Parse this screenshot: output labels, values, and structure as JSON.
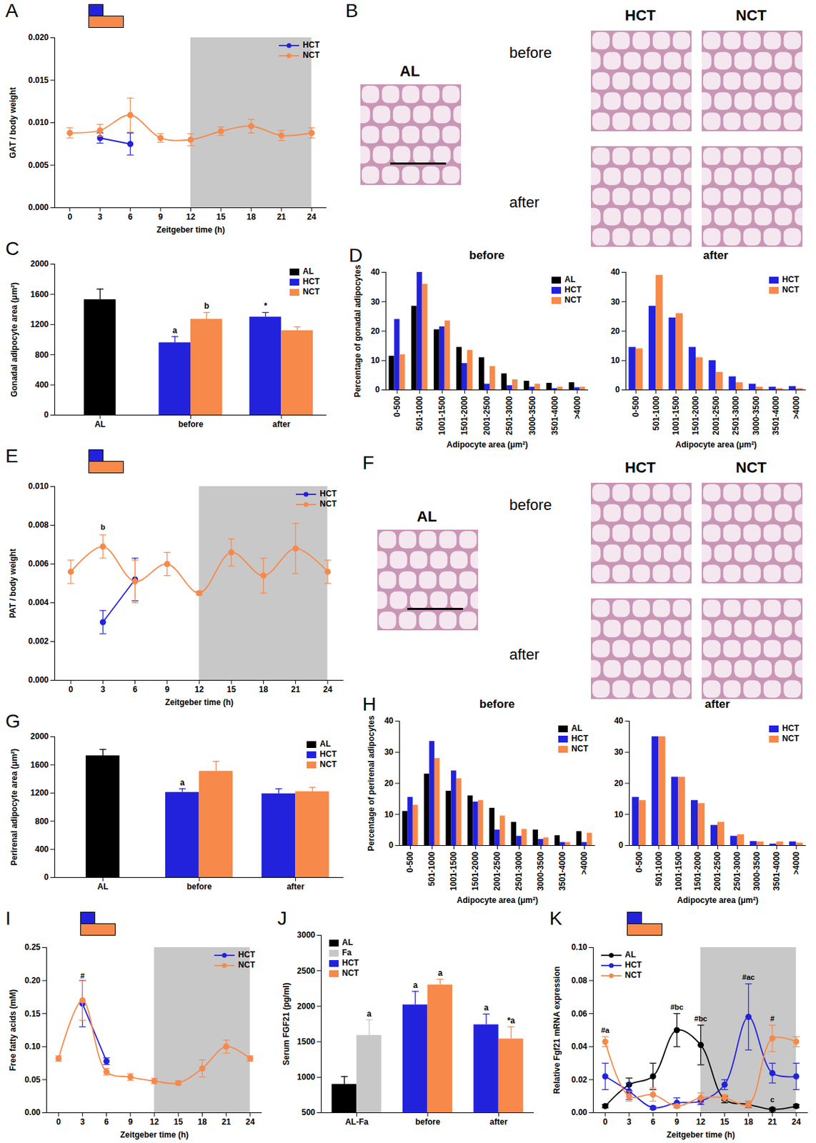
{
  "chart_data": [
    {
      "panel": "A",
      "type": "line",
      "x": [
        0,
        3,
        6,
        9,
        12,
        15,
        18,
        21,
        24
      ],
      "xlim": [
        -1.5,
        25.5
      ],
      "xticks": [
        0,
        3,
        6,
        9,
        12,
        15,
        18,
        21,
        24
      ],
      "ylim": [
        0,
        0.02
      ],
      "yticks": [
        {
          "value": 0,
          "label": "0.000"
        },
        {
          "value": 0.005,
          "label": "0.005"
        },
        {
          "value": 0.01,
          "label": "0.010"
        },
        {
          "value": 0.015,
          "label": "0.015"
        },
        {
          "value": 0.02,
          "label": "0.020"
        }
      ],
      "xlabel": "Zeitgeber time (h)",
      "ylabel": "GAT / body weight",
      "shaded_x": [
        12,
        24
      ],
      "legend": "upper right",
      "series": [
        {
          "name": "HCT",
          "color": "#2222dd",
          "marker": "circle",
          "values": [
            null,
            0.0082,
            0.0075,
            null,
            null,
            null,
            null,
            null,
            null
          ],
          "errors": [
            null,
            0.0006,
            0.0013,
            null,
            null,
            null,
            null,
            null,
            null
          ]
        },
        {
          "name": "NCT",
          "color": "#f7894a",
          "marker": "circle",
          "values": [
            0.0088,
            0.0091,
            0.0109,
            0.0082,
            0.008,
            0.009,
            0.0096,
            0.0085,
            0.0088
          ],
          "errors": [
            0.0006,
            0.0007,
            0.002,
            0.0005,
            0.0007,
            0.0005,
            0.0008,
            0.0006,
            0.0006
          ]
        }
      ],
      "annotations": []
    },
    {
      "panel": "B",
      "type": "image",
      "image_label": "AL",
      "column_labels": [
        "HCT",
        "NCT"
      ],
      "row_labels": [
        "before",
        "after"
      ]
    },
    {
      "panel": "C",
      "type": "bar",
      "categories": [
        "AL",
        "before",
        "after"
      ],
      "ylim": [
        0,
        2000
      ],
      "yticks": [
        0,
        400,
        800,
        1200,
        1600,
        2000
      ],
      "ylabel": "Gonadal adipocyte area (μm²)",
      "legend": "upper right",
      "series": [
        {
          "name": "AL",
          "color": "#000000",
          "values": [
            1530,
            null,
            null
          ],
          "errors": [
            140,
            null,
            null
          ],
          "annotations": [
            null,
            null,
            null
          ]
        },
        {
          "name": "HCT",
          "color": "#2222dd",
          "values": [
            null,
            960,
            1300
          ],
          "errors": [
            null,
            80,
            60
          ],
          "annotations": [
            null,
            "a",
            "*"
          ]
        },
        {
          "name": "NCT",
          "color": "#f7894a",
          "values": [
            null,
            1270,
            1120
          ],
          "errors": [
            null,
            90,
            50
          ],
          "annotations": [
            null,
            "b",
            null
          ]
        }
      ]
    },
    {
      "panel": "D",
      "type": "bar",
      "title": "before",
      "categories": [
        "0-500",
        "501-1000",
        "1001-1500",
        "1501-2000",
        "2001-2500",
        "2501-3000",
        "3000-3500",
        "3501-4000",
        ">4000"
      ],
      "ylim": [
        0,
        40
      ],
      "yticks": [
        0,
        10,
        20,
        30,
        40
      ],
      "xlabel": "Adipocyte area (μm²)",
      "ylabel": "Percentage of gonadal adipocytes",
      "legend": "upper right",
      "series": [
        {
          "name": "AL",
          "color": "#000000",
          "values": [
            11.5,
            28.5,
            20.5,
            14.5,
            11,
            5.5,
            3,
            2.3,
            2.5
          ]
        },
        {
          "name": "HCT",
          "color": "#2222dd",
          "values": [
            24,
            40,
            21.5,
            9,
            2,
            1.5,
            1,
            0.5,
            0.8
          ]
        },
        {
          "name": "NCT",
          "color": "#f7894a",
          "values": [
            12,
            36,
            23.5,
            13.5,
            8,
            3.5,
            2,
            1,
            1
          ]
        }
      ]
    },
    {
      "type": "bar",
      "title": "after",
      "categories": [
        "0-500",
        "501-1000",
        "1001-1500",
        "1501-2000",
        "2001-2500",
        "2501-3000",
        "3000-3500",
        "3501-4000",
        ">4000"
      ],
      "ylim": [
        0,
        40
      ],
      "yticks": [
        0,
        10,
        20,
        30,
        40
      ],
      "xlabel": "Adipocyte area (μm²)",
      "legend": "upper right",
      "series": [
        {
          "name": "HCT",
          "color": "#2222dd",
          "values": [
            14.5,
            28.5,
            24.5,
            14.5,
            10,
            4.5,
            2,
            1,
            1.2
          ]
        },
        {
          "name": "NCT",
          "color": "#f7894a",
          "values": [
            14,
            39,
            26,
            11,
            6,
            2.5,
            1,
            0.5,
            0.5
          ]
        }
      ]
    },
    {
      "panel": "E",
      "type": "line",
      "x": [
        0,
        3,
        6,
        9,
        12,
        15,
        18,
        21,
        24
      ],
      "xlim": [
        -1.5,
        25.5
      ],
      "xticks": [
        0,
        3,
        6,
        9,
        12,
        15,
        18,
        21,
        24
      ],
      "ylim": [
        0,
        0.01
      ],
      "yticks": [
        {
          "value": 0,
          "label": "0.000"
        },
        {
          "value": 0.002,
          "label": "0.002"
        },
        {
          "value": 0.004,
          "label": "0.004"
        },
        {
          "value": 0.006,
          "label": "0.006"
        },
        {
          "value": 0.008,
          "label": "0.008"
        },
        {
          "value": 0.01,
          "label": "0.010"
        }
      ],
      "xlabel": "Zeitgeber time (h)",
      "ylabel": "PAT / body weight",
      "shaded_x": [
        12,
        24
      ],
      "legend": "upper right",
      "series": [
        {
          "name": "HCT",
          "color": "#2222dd",
          "marker": "circle",
          "values": [
            null,
            0.003,
            0.0052,
            null,
            null,
            null,
            null,
            null,
            null
          ],
          "errors": [
            null,
            0.0006,
            0.0011,
            null,
            null,
            null,
            null,
            null,
            null
          ]
        },
        {
          "name": "NCT",
          "color": "#f7894a",
          "marker": "circle",
          "values": [
            0.0056,
            0.0069,
            0.0051,
            0.006,
            0.0045,
            0.0066,
            0.0054,
            0.0068,
            0.0056
          ],
          "errors": [
            0.0006,
            0.0006,
            0.0011,
            0.0006,
            0.0001,
            0.0007,
            0.0009,
            0.0013,
            0.0006
          ]
        }
      ],
      "annotations": [
        {
          "x": 3,
          "y": 0.0079,
          "text": "b"
        }
      ]
    },
    {
      "panel": "F",
      "type": "image",
      "image_label": "AL",
      "column_labels": [
        "HCT",
        "NCT"
      ],
      "row_labels": [
        "before",
        "after"
      ]
    },
    {
      "panel": "G",
      "type": "bar",
      "categories": [
        "AL",
        "before",
        "after"
      ],
      "ylim": [
        0,
        2000
      ],
      "yticks": [
        0,
        400,
        800,
        1200,
        1600,
        2000
      ],
      "ylabel": "Perirenal adipocyte area (μm²)",
      "legend": "upper right",
      "series": [
        {
          "name": "AL",
          "color": "#000000",
          "values": [
            1730,
            null,
            null
          ],
          "errors": [
            90,
            null,
            null
          ],
          "annotations": [
            null,
            null,
            null
          ]
        },
        {
          "name": "HCT",
          "color": "#2222dd",
          "values": [
            null,
            1210,
            1190
          ],
          "errors": [
            null,
            50,
            70
          ],
          "annotations": [
            null,
            "a",
            null
          ]
        },
        {
          "name": "NCT",
          "color": "#f7894a",
          "values": [
            null,
            1510,
            1220
          ],
          "errors": [
            null,
            140,
            60
          ],
          "annotations": [
            null,
            null,
            null
          ]
        }
      ]
    },
    {
      "panel": "H",
      "type": "bar",
      "title": "before",
      "categories": [
        "0-500",
        "501-1000",
        "1001-1500",
        "1501-2000",
        "2001-2500",
        "2501-3000",
        "3000-3500",
        "3501-4000",
        ">4000"
      ],
      "ylim": [
        0,
        40
      ],
      "yticks": [
        0,
        10,
        20,
        30,
        40
      ],
      "xlabel": "Adipocyte area (μm²)",
      "ylabel": "Percentage of perirenal adipocytes",
      "legend": "upper right",
      "series": [
        {
          "name": "AL",
          "color": "#000000",
          "values": [
            11,
            23,
            17.5,
            16,
            12,
            7.5,
            5,
            3.2,
            4.5
          ]
        },
        {
          "name": "HCT",
          "color": "#2222dd",
          "values": [
            15.5,
            33.5,
            24,
            14,
            5,
            3,
            2,
            1,
            1
          ]
        },
        {
          "name": "NCT",
          "color": "#f7894a",
          "values": [
            13,
            28,
            21.5,
            14.5,
            9.5,
            5.2,
            2.5,
            1,
            4
          ]
        }
      ]
    },
    {
      "type": "bar",
      "title": "after",
      "categories": [
        "0-500",
        "501-1000",
        "1001-1500",
        "1501-2000",
        "2001-2500",
        "2501-3000",
        "3000-3500",
        "3501-4000",
        ">4000"
      ],
      "ylim": [
        0,
        40
      ],
      "yticks": [
        0,
        10,
        20,
        30,
        40
      ],
      "xlabel": "Adipocyte area (μm²)",
      "legend": "upper right",
      "series": [
        {
          "name": "HCT",
          "color": "#2222dd",
          "values": [
            15.5,
            35,
            22,
            14.5,
            6.5,
            3,
            1.3,
            0.5,
            1.2
          ]
        },
        {
          "name": "NCT",
          "color": "#f7894a",
          "values": [
            14.5,
            35,
            22,
            13.5,
            7.5,
            3.5,
            1.2,
            1.2,
            0.8
          ]
        }
      ]
    },
    {
      "panel": "I",
      "type": "line",
      "x": [
        0,
        3,
        6,
        9,
        12,
        15,
        18,
        21,
        24
      ],
      "xlim": [
        -1.5,
        25.5
      ],
      "xticks": [
        0,
        3,
        6,
        9,
        12,
        15,
        18,
        21,
        24
      ],
      "ylim": [
        0,
        0.25
      ],
      "yticks": [
        {
          "value": 0,
          "label": "0.00"
        },
        {
          "value": 0.05,
          "label": "0.05"
        },
        {
          "value": 0.1,
          "label": "0.10"
        },
        {
          "value": 0.15,
          "label": "0.15"
        },
        {
          "value": 0.2,
          "label": "0.20"
        },
        {
          "value": 0.25,
          "label": "0.25"
        }
      ],
      "xlabel": "Zeitgeber time (h)",
      "ylabel": "Free fatty acids (mM)",
      "shaded_x": [
        12,
        24
      ],
      "legend": "upper right",
      "series": [
        {
          "name": "HCT",
          "color": "#2222dd",
          "marker": "circle",
          "values": [
            null,
            0.165,
            0.078,
            null,
            null,
            null,
            null,
            null,
            null
          ],
          "errors": [
            null,
            0.035,
            0.005,
            null,
            null,
            null,
            null,
            null,
            null
          ]
        },
        {
          "name": "NCT",
          "color": "#f7894a",
          "marker": "circle",
          "values": [
            0.082,
            0.17,
            0.062,
            0.054,
            0.048,
            0.045,
            0.067,
            0.1,
            0.082
          ],
          "errors": [
            0.004,
            0.03,
            0.005,
            0.005,
            0.004,
            0.003,
            0.013,
            0.01,
            0.004
          ]
        }
      ],
      "annotations": [
        {
          "x": 3,
          "y": 0.207,
          "text": "#"
        }
      ]
    },
    {
      "panel": "J",
      "type": "bar",
      "categories": [
        "AL-Fa",
        "before",
        "after"
      ],
      "ylim": [
        500,
        3000
      ],
      "yticks": [
        500,
        1000,
        1500,
        2000,
        2500,
        3000
      ],
      "ylabel": "Serum FGF21 (pg/ml)",
      "legend": "upper left",
      "series": [
        {
          "name": "AL",
          "color": "#000000",
          "values": [
            900,
            null,
            null
          ],
          "errors": [
            110,
            null,
            null
          ],
          "annotations": [
            null,
            null,
            null
          ]
        },
        {
          "name": "Fa",
          "color": "#c8c8c8",
          "values": [
            1590,
            null,
            null
          ],
          "errors": [
            220,
            null,
            null
          ],
          "annotations": [
            "a",
            null,
            null
          ]
        },
        {
          "name": "HCT",
          "color": "#2222dd",
          "values": [
            null,
            2020,
            1740
          ],
          "errors": [
            null,
            190,
            150
          ],
          "annotations": [
            null,
            "a",
            "a"
          ]
        },
        {
          "name": "NCT",
          "color": "#f7894a",
          "values": [
            null,
            2300,
            1540
          ],
          "errors": [
            null,
            80,
            170
          ],
          "annotations": [
            null,
            "a",
            "*a"
          ]
        }
      ]
    },
    {
      "panel": "K",
      "type": "line",
      "x": [
        0,
        3,
        6,
        9,
        12,
        15,
        18,
        21,
        24
      ],
      "xlim": [
        -1.5,
        25.5
      ],
      "xticks": [
        0,
        3,
        6,
        9,
        12,
        15,
        18,
        21,
        24
      ],
      "ylim": [
        0,
        0.1
      ],
      "yticks": [
        {
          "value": 0,
          "label": "0.00"
        },
        {
          "value": 0.02,
          "label": "0.02"
        },
        {
          "value": 0.04,
          "label": "0.04"
        },
        {
          "value": 0.06,
          "label": "0.06"
        },
        {
          "value": 0.08,
          "label": "0.08"
        },
        {
          "value": 0.1,
          "label": "0.10"
        }
      ],
      "xlabel": "Zeitgeber time (h)",
      "ylabel": "Relative Fgf21 mRNA expression",
      "shaded_x": [
        12,
        24
      ],
      "legend": "upper left",
      "series": [
        {
          "name": "AL",
          "color": "#000000",
          "marker": "circle",
          "values": [
            0.004,
            0.017,
            0.022,
            0.05,
            0.041,
            0.008,
            0.005,
            0.002,
            0.004
          ],
          "errors": [
            0.001,
            0.004,
            0.008,
            0.01,
            0.012,
            0.002,
            0.002,
            0.001,
            0.001
          ]
        },
        {
          "name": "HCT",
          "color": "#2222dd",
          "marker": "circle",
          "values": [
            0.022,
            0.013,
            0.003,
            0.006,
            0.007,
            0.017,
            0.058,
            0.024,
            0.022
          ],
          "errors": [
            0.008,
            0.005,
            0.001,
            0.003,
            0.002,
            0.003,
            0.02,
            0.006,
            0.008
          ]
        },
        {
          "name": "NCT",
          "color": "#f7894a",
          "marker": "circle",
          "values": [
            0.043,
            0.01,
            0.011,
            0.004,
            0.009,
            0.009,
            0.005,
            0.045,
            0.043
          ],
          "errors": [
            0.003,
            0.003,
            0.004,
            0.001,
            0.003,
            0.002,
            0.002,
            0.008,
            0.003
          ]
        }
      ],
      "annotations": [
        {
          "x": 0,
          "y": 0.05,
          "text": "#a"
        },
        {
          "x": 9,
          "y": 0.064,
          "text": "#bc"
        },
        {
          "x": 12,
          "y": 0.057,
          "text": "#bc"
        },
        {
          "x": 18,
          "y": 0.082,
          "text": "#ac"
        },
        {
          "x": 21,
          "y": 0.057,
          "text": "#"
        },
        {
          "x": 21,
          "y": 0.008,
          "text": "c"
        }
      ]
    }
  ]
}
